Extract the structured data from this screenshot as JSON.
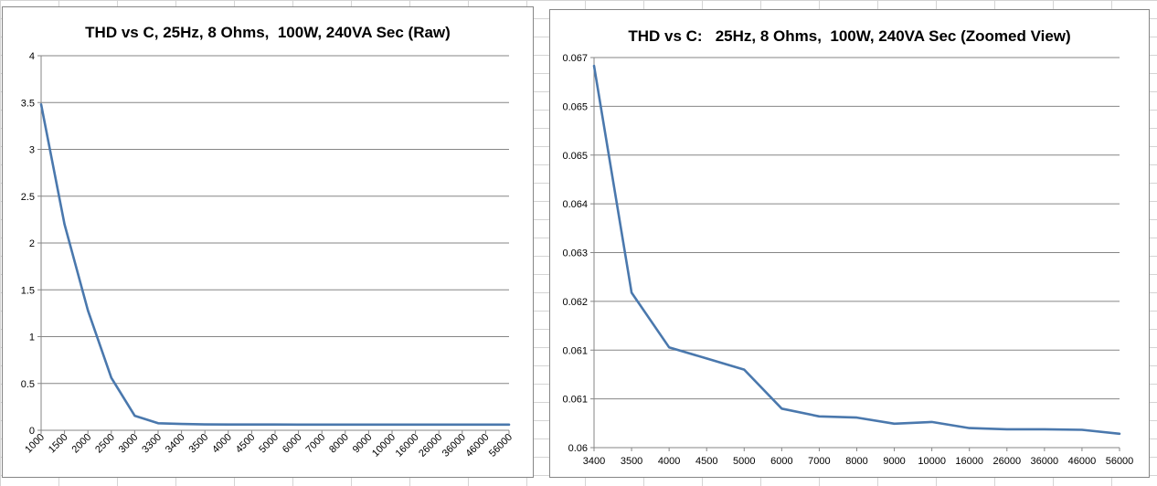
{
  "chart_data": [
    {
      "type": "line",
      "title": "THD vs C, 25Hz, 8 Ohms,  100W, 240VA Sec (Raw)",
      "xlabel": "",
      "ylabel": "",
      "categories": [
        "1000",
        "1500",
        "2000",
        "2500",
        "3000",
        "3300",
        "3400",
        "3500",
        "4000",
        "4500",
        "5000",
        "6000",
        "7000",
        "8000",
        "9000",
        "10000",
        "16000",
        "26000",
        "36000",
        "46000",
        "56000"
      ],
      "series": [
        {
          "values": [
            3.48,
            2.2,
            1.28,
            0.56,
            0.155,
            0.075,
            0.067,
            0.0628,
            0.0618,
            0.0616,
            0.0614,
            0.0607,
            0.06055,
            0.06054,
            0.06043,
            0.06046,
            0.06035,
            0.06033,
            0.06033,
            0.06032,
            0.06025
          ]
        }
      ],
      "ylim": [
        0,
        4
      ],
      "yticks": [
        "0",
        "0.5",
        "1",
        "1.5",
        "2",
        "2.5",
        "3",
        "3.5",
        "4"
      ],
      "grid": "horizontal",
      "x_tick_rotation": "-45deg",
      "line_color": "#4a78ad"
    },
    {
      "type": "line",
      "title": "THD vs C:   25Hz, 8 Ohms,  100W, 240VA Sec (Zoomed View)",
      "xlabel": "",
      "ylabel": "",
      "categories": [
        "3400",
        "3500",
        "4000",
        "4500",
        "5000",
        "6000",
        "7000",
        "8000",
        "9000",
        "10000",
        "16000",
        "26000",
        "36000",
        "46000",
        "56000"
      ],
      "series": [
        {
          "values": [
            0.06685,
            0.06278,
            0.0618,
            0.0616,
            0.0614,
            0.0607,
            0.06056,
            0.06054,
            0.06043,
            0.06046,
            0.06035,
            0.06033,
            0.06033,
            0.06032,
            0.06025
          ]
        }
      ],
      "ylim": [
        0.06,
        0.067
      ],
      "yticks": [
        "0.06",
        "0.061",
        "0.061",
        "0.062",
        "0.063",
        "0.064",
        "0.065",
        "0.065",
        "0.067"
      ],
      "grid": "horizontal",
      "line_color": "#4a78ad"
    }
  ]
}
